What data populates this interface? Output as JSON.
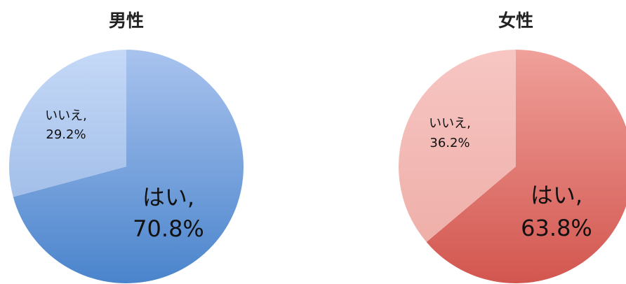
{
  "chart_data": [
    {
      "type": "pie",
      "title": "男性",
      "slices": [
        {
          "label": "はい",
          "value": 70.8,
          "display_value": "70.8%"
        },
        {
          "label": "いいえ",
          "value": 29.2,
          "display_value": "29.2%"
        }
      ],
      "colors": {
        "はい": {
          "light": "#a9c3ee",
          "dark": "#4a84cc"
        },
        "いいえ": {
          "light": "#c5d9f7",
          "dark": "#a3bfe9"
        }
      },
      "start": "12 o'clock",
      "direction": "clockwise"
    },
    {
      "type": "pie",
      "title": "女性",
      "slices": [
        {
          "label": "はい",
          "value": 63.8,
          "display_value": "63.8%"
        },
        {
          "label": "いいえ",
          "value": 36.2,
          "display_value": "36.2%"
        }
      ],
      "colors": {
        "はい": {
          "light": "#f0a09a",
          "dark": "#d2564f"
        },
        "いいえ": {
          "light": "#f7c6c3",
          "dark": "#efafa9"
        }
      },
      "start": "12 o'clock",
      "direction": "clockwise"
    }
  ]
}
